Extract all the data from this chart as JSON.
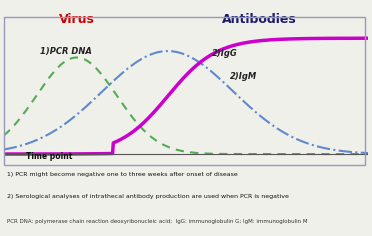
{
  "title_virus": "Virus",
  "title_antibodies": "Antibodies",
  "title_virus_color": "#cc0000",
  "title_antibodies_color": "#1a1a6e",
  "pcr_label": "1)PCR DNA",
  "igm_label": "2)IgM",
  "igg_label": "2)IgG",
  "time_label": "Time point",
  "footnote1": "1) PCR might become negative one to three weeks after onset of disease",
  "footnote2": "2) Serological analyses of intrathecal antibody production are used when PCR is negative",
  "footnote3": "PCR DNA: polymerase chain reaction deoxyribonucleic acid;  IgG: immunoglobulin G; IgM: immunoglobulin M",
  "pcr_color": "#3a9e3a",
  "igm_color": "#4477cc",
  "igg_color": "#cc00cc",
  "background_color": "#f5f5f0",
  "border_color": "#8888aa",
  "chart_bg": "#f0f0ea"
}
